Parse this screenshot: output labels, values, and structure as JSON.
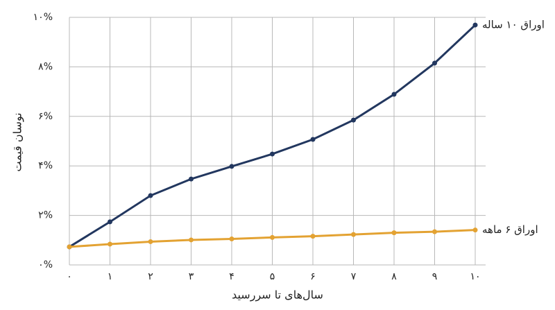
{
  "chart_data": {
    "type": "line",
    "x_label": "سال‌های تا سررسید",
    "y_label": "نوسان قیمت",
    "categories": [
      "۰",
      "۱",
      "۲",
      "۳",
      "۴",
      "۵",
      "۶",
      "۷",
      "۸",
      "۹",
      "۱۰"
    ],
    "series": [
      {
        "name": "اوراق ۱۰ ساله",
        "color": "#22375f",
        "values": [
          0.73,
          1.74,
          2.8,
          3.47,
          3.98,
          4.48,
          5.07,
          5.85,
          6.89,
          8.15,
          9.69
        ]
      },
      {
        "name": "اوراق ۶ ماهه",
        "color": "#e3a232",
        "values": [
          0.73,
          0.84,
          0.94,
          1.01,
          1.05,
          1.11,
          1.16,
          1.23,
          1.3,
          1.34,
          1.41
        ]
      }
    ],
    "ylim": [
      0,
      10
    ],
    "yticks": [
      {
        "value": 0,
        "label": "۰%"
      },
      {
        "value": 2,
        "label": "۲%"
      },
      {
        "value": 4,
        "label": "۴%"
      },
      {
        "value": 6,
        "label": "۶%"
      },
      {
        "value": 8,
        "label": "۸%"
      },
      {
        "value": 10,
        "label": "۱۰%"
      }
    ],
    "grid": true
  }
}
